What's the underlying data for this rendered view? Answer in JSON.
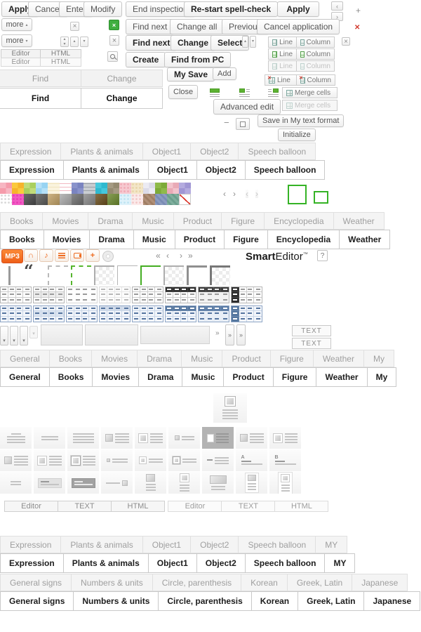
{
  "glyphs": {
    "x": "×",
    "xx": "✕",
    "plus": "+",
    "minus": "−",
    "left": "‹",
    "right": "›",
    "dleft": "«",
    "dright": "»",
    "up": "▲",
    "down": "▼",
    "sup": "▴",
    "sdown": "▾",
    "quote": "“",
    "note": "♪",
    "headphones": "∩"
  },
  "top_buttons": {
    "apply": "Apply",
    "cancel": "Cancel",
    "enter": "Enter",
    "modify": "Modify",
    "end_inspection": "End inspection",
    "restart": "Re-start spell-check",
    "apply_bold": "Apply",
    "more_up": "more",
    "more_down": "more",
    "find_next": "Find next",
    "change_all": "Change all",
    "previous": "Previous",
    "cancel_application": "Cancel application",
    "find_next_bold": "Find next",
    "change_bold": "Change",
    "select_bold": "Select",
    "create": "Create",
    "find_from_pc": "Find from PC",
    "my_save": "My Save",
    "add": "Add",
    "close": "Close",
    "advanced_edit": "Advanced edit",
    "save_format": "Save in My text format",
    "initialize": "Initialize"
  },
  "table_controls": {
    "line": "Line",
    "column": "Column",
    "merge": "Merge cells"
  },
  "editor_tabs": [
    "Editor",
    "HTML"
  ],
  "find_tabs": [
    "Find",
    "Change"
  ],
  "sticker_tabs": [
    "Expression",
    "Plants & animals",
    "Object1",
    "Object2",
    "Speech balloon"
  ],
  "category_tabs": [
    "Books",
    "Movies",
    "Drama",
    "Music",
    "Product",
    "Figure",
    "Encyclopedia",
    "Weather"
  ],
  "template_tabs": [
    "General",
    "Books",
    "Movies",
    "Drama",
    "Music",
    "Product",
    "Figure",
    "Weather",
    "My"
  ],
  "mode_tabs": [
    "Editor",
    "TEXT",
    "HTML"
  ],
  "sticker_tabs_my": [
    "Expression",
    "Plants & animals",
    "Object1",
    "Object2",
    "Speech balloon",
    "MY"
  ],
  "symbol_tabs": [
    "General signs",
    "Numbers & units",
    "Circle, parenthesis",
    "Korean",
    "Greek, Latin",
    "Japanese"
  ],
  "media_toolbar": {
    "mp3": "MP3"
  },
  "logo": {
    "bold": "Smart",
    "rest": "Editor",
    "tm": "™",
    "help": "?"
  },
  "text_buttons": {
    "a": "TEXT",
    "b": "TEXT"
  },
  "swatches_row1": [
    {
      "t": "duo",
      "a": "#f7b6c2",
      "b": "#f59cab"
    },
    {
      "t": "duo",
      "a": "#fbc93d",
      "b": "#f6b42c"
    },
    {
      "t": "duo",
      "a": "#c0dc7a",
      "b": "#a9cf5e"
    },
    {
      "t": "duo",
      "a": "#b5e0f7",
      "b": "#97d3f2"
    },
    {
      "t": "lines",
      "a": "#faf3dd",
      "b": "#f0e4be"
    },
    {
      "t": "lines",
      "a": "#ffffff",
      "b": "#f2b7c0"
    },
    {
      "t": "duo",
      "a": "#8a93cb",
      "b": "#7a84c0"
    },
    {
      "t": "lines",
      "a": "#c9cdd1",
      "b": "#9aa0a6"
    },
    {
      "t": "duo",
      "a": "#45c8dc",
      "b": "#2fb9cf"
    },
    {
      "t": "duo",
      "a": "#a59a82",
      "b": "#958a70"
    },
    {
      "t": "dots",
      "a": "#f6c9d0",
      "b": "#f0aab5"
    },
    {
      "t": "dots",
      "a": "#f3e6c8",
      "b": "#e8d5a8"
    },
    {
      "t": "duo",
      "a": "#ecebf3",
      "b": "#dcdbe8"
    },
    {
      "t": "duo",
      "a": "#8fba4a",
      "b": "#7daa38"
    },
    {
      "t": "duo",
      "a": "#f2c3cc",
      "b": "#e9aab6"
    },
    {
      "t": "duo",
      "a": "#b4abdf",
      "b": "#a096d4"
    }
  ],
  "swatches_row2": [
    {
      "t": "dots",
      "a": "#ffffff",
      "b": "#d8d8d8"
    },
    {
      "t": "dots",
      "a": "#f05ac3",
      "b": "#e93bb4"
    },
    {
      "t": "tex",
      "a": "#4a4a4a"
    },
    {
      "t": "tex",
      "a": "#5a5a58"
    },
    {
      "t": "tex",
      "a": "#c3a368"
    },
    {
      "t": "tex",
      "a": "#ababab"
    },
    {
      "t": "tex",
      "a": "#6f6f6f"
    },
    {
      "t": "tex",
      "a": "#8a8a8a"
    },
    {
      "t": "tex",
      "a": "#6b4f1e"
    },
    {
      "t": "tex",
      "a": "#6d8a2f"
    },
    {
      "t": "dots",
      "a": "#dff2fa",
      "b": "#bfe4f2"
    },
    {
      "t": "dots",
      "a": "#fbeaea",
      "b": "#f2c7c7"
    },
    {
      "t": "diag",
      "a": "#b19078",
      "b": "#a07e64"
    },
    {
      "t": "diag",
      "a": "#8c9cc0",
      "b": "#7a8cb4"
    },
    {
      "t": "diag",
      "a": "#7fae9d",
      "b": "#6b9e8c"
    },
    {
      "t": "redline",
      "a": "#ffffff"
    }
  ],
  "corner_styles": [
    {
      "checker": false,
      "cls": "c-dash-gray"
    },
    {
      "checker": false,
      "cls": "c-dash-green"
    },
    {
      "checker": true,
      "cls": "c-mid-gray"
    },
    {
      "checker": false,
      "cls": "c-thin-gray"
    },
    {
      "checker": false,
      "cls": "c-green"
    },
    {
      "checker": true,
      "cls": "c-mid-gray"
    },
    {
      "checker": false,
      "cls": "c-thick-gray"
    },
    {
      "checker": true,
      "cls": "c-thick-dark"
    }
  ],
  "table_styles_gray": [
    "plain",
    "alt",
    "dashes",
    "light",
    "plain",
    "dark-header",
    "dark-cells",
    "dark-col"
  ],
  "table_styles_blue": [
    "light",
    "alt",
    "dashes",
    "top",
    "light",
    "header",
    "cells",
    "col"
  ],
  "layout_featured": {
    "t": "featured"
  },
  "layout_grid": [
    {
      "t": "c-lines"
    },
    {
      "t": "lines2"
    },
    {
      "t": "lines4"
    },
    {
      "t": "sq-lines"
    },
    {
      "t": "fsq-lines"
    },
    {
      "t": "smsq-lines"
    },
    {
      "t": "dark-banner"
    },
    {
      "t": "sq-lines"
    },
    {
      "t": "fsq-lines"
    },
    {
      "t": "sq-lines"
    },
    {
      "t": "fsq-lines"
    },
    {
      "t": "fsq-lines-b"
    },
    {
      "t": "tsq-line"
    },
    {
      "t": "smfsq-line"
    },
    {
      "t": "smfsq-line-b"
    },
    {
      "t": "dash-lines"
    },
    {
      "t": "letter-lines",
      "ch": "A"
    },
    {
      "t": "letter-lines",
      "ch": "B"
    },
    {
      "t": "lines2l"
    },
    {
      "t": "graybox"
    },
    {
      "t": "darkbox"
    },
    {
      "t": "line-sqr"
    },
    {
      "t": "v-img"
    },
    {
      "t": "v-fimg"
    },
    {
      "t": "wide-img"
    },
    {
      "t": "card-img"
    },
    {
      "t": "card-fsq"
    }
  ]
}
